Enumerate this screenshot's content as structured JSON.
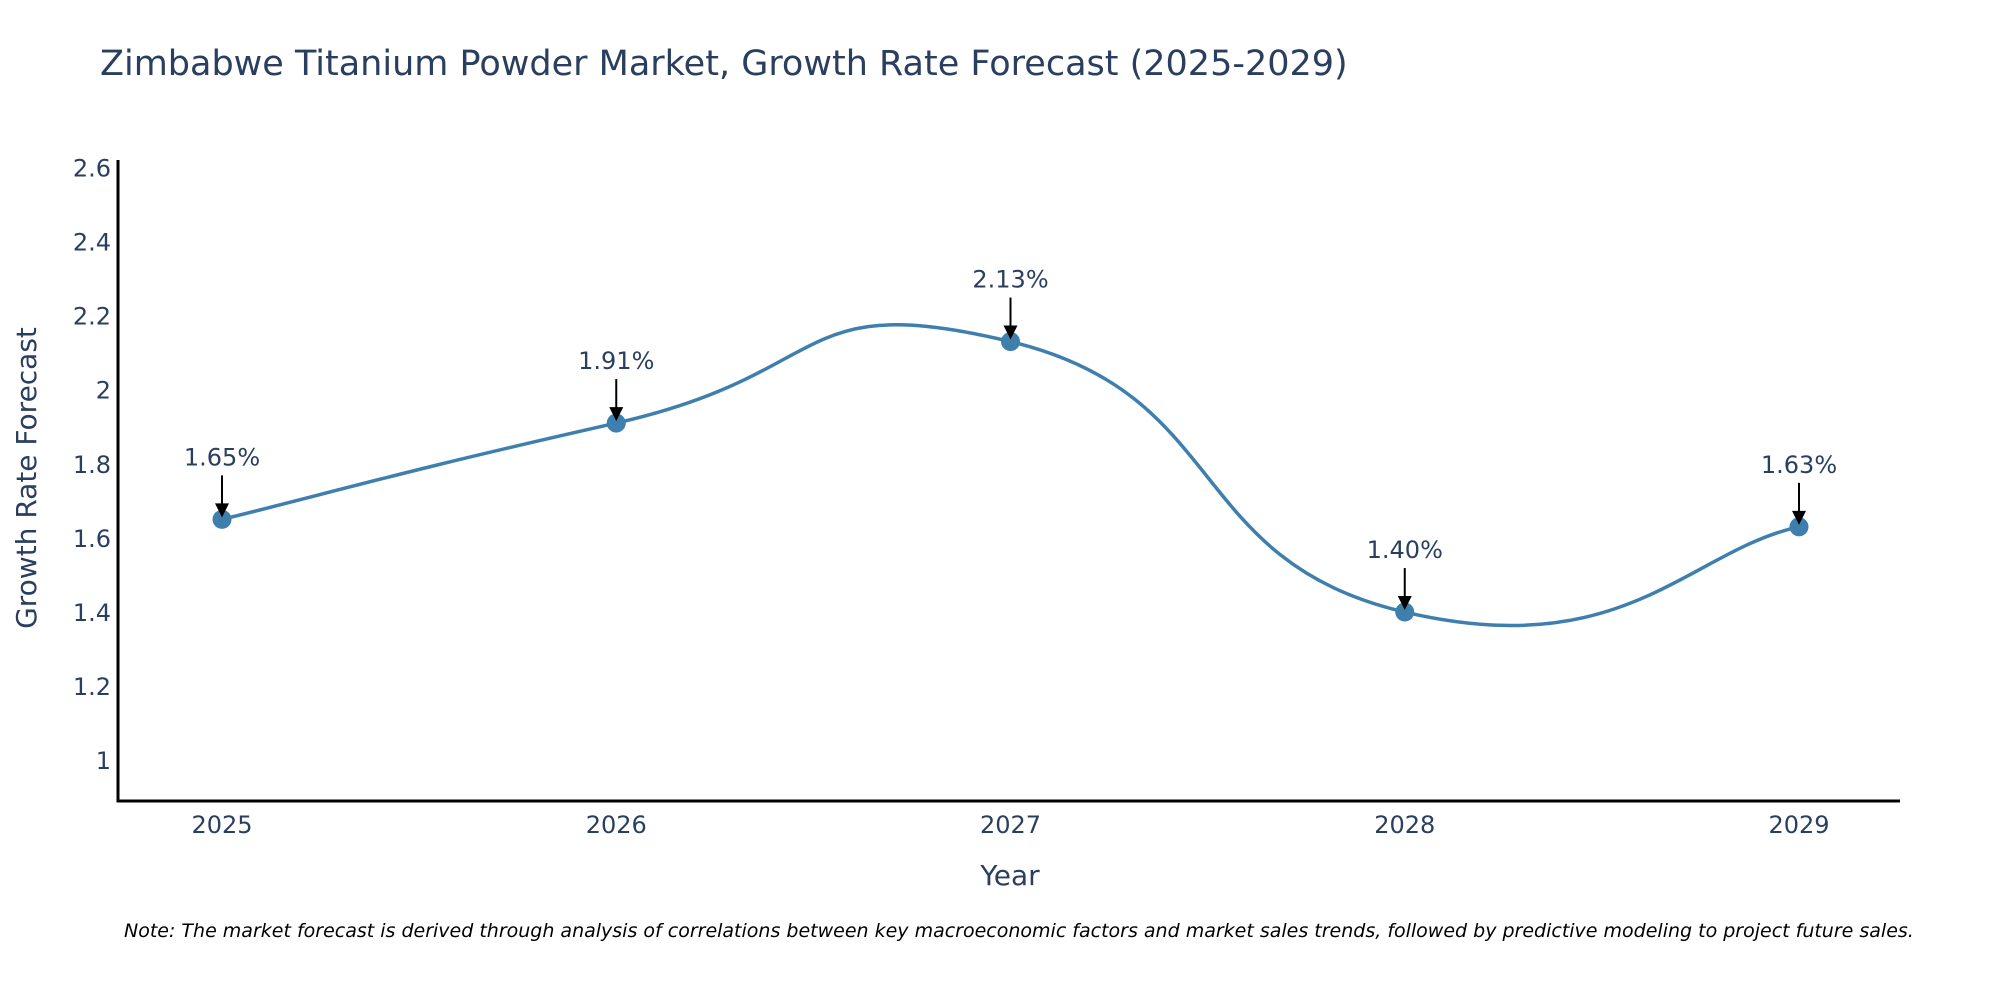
{
  "chart_data": {
    "type": "line",
    "title": "Zimbabwe Titanium Powder Market, Growth Rate Forecast (2025-2029)",
    "xlabel": "Year",
    "ylabel": "Growth Rate Forecast",
    "categories": [
      "2025",
      "2026",
      "2027",
      "2028",
      "2029"
    ],
    "values": [
      1.65,
      1.91,
      2.13,
      1.4,
      1.63
    ],
    "data_labels": [
      "1.65%",
      "1.91%",
      "2.13%",
      "1.40%",
      "1.63%"
    ],
    "ylim": [
      0.89,
      2.62
    ],
    "yticks": [
      1,
      1.2,
      1.4,
      1.6,
      1.8,
      2,
      2.2,
      2.4,
      2.6
    ],
    "ytick_labels": [
      "1",
      "1.2",
      "1.4",
      "1.6",
      "1.8",
      "2",
      "2.2",
      "2.4",
      "2.6"
    ],
    "grid": false,
    "line_shape": "spline",
    "colors": {
      "line": "#3f7fae",
      "marker": "#3f7fae",
      "text": "#2a3f5f",
      "axis": "#000000",
      "arrow": "#000000"
    }
  },
  "note": "Note: The market forecast is derived through analysis of correlations between key macroeconomic factors and market sales trends, followed by predictive modeling to project future sales."
}
